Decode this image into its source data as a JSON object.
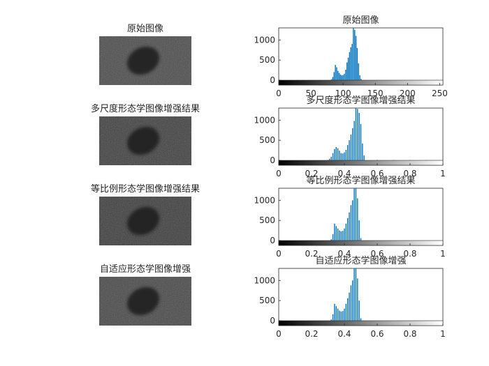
{
  "figure": {
    "background": "#ffffff",
    "image_tile_color": "#4a4a4a",
    "blob_color": "#1e1e1e",
    "bar_color": "#0072bd"
  },
  "images": [
    {
      "title": "原始图像"
    },
    {
      "title": "多尺度形态学图像增强结果"
    },
    {
      "title": "等比例形态学图像增强结果"
    },
    {
      "title": "自适应形态学图像增强"
    }
  ],
  "chart_data": [
    {
      "type": "bar",
      "title": "原始图像",
      "xlim": [
        0,
        255
      ],
      "ylim": [
        0,
        1300
      ],
      "xticks": [
        "0",
        "50",
        "100",
        "150",
        "200",
        "250"
      ],
      "xtick_values": [
        0,
        50,
        100,
        150,
        200,
        250
      ],
      "yticks": [
        "0",
        "500",
        "1000"
      ],
      "ytick_values": [
        0,
        500,
        1000
      ],
      "x": [
        82,
        84,
        86,
        88,
        90,
        92,
        94,
        96,
        98,
        100,
        102,
        104,
        106,
        108,
        110,
        112,
        114,
        116,
        118,
        120,
        122,
        124,
        126,
        128
      ],
      "values": [
        20,
        80,
        200,
        380,
        320,
        230,
        180,
        140,
        120,
        130,
        160,
        260,
        440,
        560,
        700,
        820,
        900,
        1300,
        1250,
        1100,
        800,
        420,
        120,
        30
      ],
      "colorbar": "grayscale"
    },
    {
      "type": "bar",
      "title": "多尺度形态学图像增强结果",
      "xlim": [
        0,
        1
      ],
      "ylim": [
        0,
        1300
      ],
      "xticks": [
        "0",
        "0.2",
        "0.4",
        "0.6",
        "0.8",
        "1"
      ],
      "xtick_values": [
        0,
        0.2,
        0.4,
        0.6,
        0.8,
        1
      ],
      "yticks": [
        "0",
        "500",
        "1000"
      ],
      "ytick_values": [
        0,
        500,
        1000
      ],
      "x": [
        0.3,
        0.31,
        0.32,
        0.33,
        0.34,
        0.35,
        0.36,
        0.37,
        0.38,
        0.39,
        0.4,
        0.41,
        0.42,
        0.43,
        0.44,
        0.45,
        0.46,
        0.47,
        0.48,
        0.49,
        0.5,
        0.51,
        0.52,
        0.6,
        0.7,
        0.8,
        0.9,
        0.98
      ],
      "values": [
        10,
        40,
        90,
        180,
        280,
        330,
        300,
        240,
        180,
        170,
        200,
        260,
        380,
        500,
        640,
        800,
        980,
        1300,
        1280,
        1180,
        900,
        420,
        120,
        10,
        8,
        6,
        5,
        4
      ],
      "colorbar": "grayscale"
    },
    {
      "type": "bar",
      "title": "等比例形态学图像增强结果",
      "xlim": [
        0,
        1
      ],
      "ylim": [
        0,
        1300
      ],
      "xticks": [
        "0",
        "0.2",
        "0.4",
        "0.6",
        "0.8",
        "1"
      ],
      "xtick_values": [
        0,
        0.2,
        0.4,
        0.6,
        0.8,
        1
      ],
      "yticks": [
        "0",
        "500",
        "1000"
      ],
      "ytick_values": [
        0,
        500,
        1000
      ],
      "x": [
        0.32,
        0.33,
        0.34,
        0.35,
        0.36,
        0.37,
        0.38,
        0.39,
        0.4,
        0.41,
        0.42,
        0.43,
        0.44,
        0.45,
        0.46,
        0.47,
        0.48,
        0.49,
        0.5
      ],
      "values": [
        30,
        160,
        420,
        360,
        300,
        250,
        230,
        240,
        300,
        420,
        560,
        700,
        880,
        1000,
        1300,
        1300,
        1050,
        500,
        60
      ],
      "colorbar": "grayscale"
    },
    {
      "type": "bar",
      "title": "自适应形态学图像增强",
      "xlim": [
        0,
        1
      ],
      "ylim": [
        0,
        1300
      ],
      "xticks": [
        "0",
        "0.2",
        "0.4",
        "0.6",
        "0.8",
        "1"
      ],
      "xtick_values": [
        0,
        0.2,
        0.4,
        0.6,
        0.8,
        1
      ],
      "yticks": [
        "0",
        "500",
        "1000"
      ],
      "ytick_values": [
        0,
        500,
        1000
      ],
      "x": [
        0.32,
        0.33,
        0.34,
        0.35,
        0.36,
        0.37,
        0.38,
        0.39,
        0.4,
        0.41,
        0.42,
        0.43,
        0.44,
        0.45,
        0.46,
        0.47,
        0.48,
        0.49,
        0.5
      ],
      "values": [
        30,
        160,
        420,
        360,
        300,
        250,
        230,
        240,
        300,
        420,
        560,
        700,
        880,
        1000,
        1300,
        1300,
        1050,
        500,
        60
      ],
      "colorbar": "grayscale"
    }
  ]
}
